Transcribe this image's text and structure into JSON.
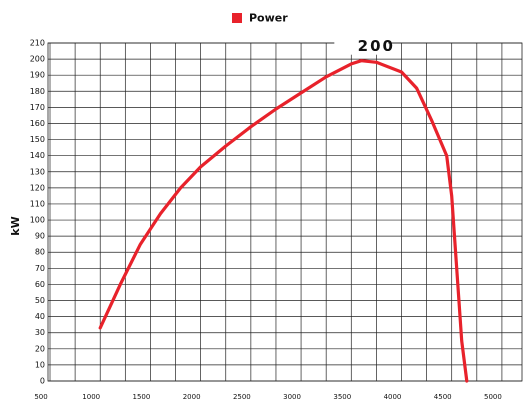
{
  "chart_data": {
    "type": "line",
    "series": [
      {
        "name": "Power",
        "color": "#e8222b",
        "x": [
          1000,
          1200,
          1400,
          1600,
          1800,
          2000,
          2250,
          2500,
          2750,
          3000,
          3250,
          3500,
          3600,
          3750,
          4000,
          4150,
          4300,
          4450,
          4500,
          4550,
          4600,
          4650
        ],
        "values": [
          33,
          60,
          85,
          104,
          120,
          133,
          146,
          158,
          169,
          179,
          189,
          197,
          199,
          198,
          192,
          182,
          162,
          140,
          115,
          70,
          25,
          0
        ]
      }
    ],
    "ylabel": "kW",
    "annotation": {
      "text": "200",
      "x": 3600,
      "y": 199
    },
    "xlim": [
      480,
      5200
    ],
    "xticks": [
      500,
      1000,
      1500,
      2000,
      2500,
      3000,
      3500,
      4000,
      4500,
      5000
    ],
    "xgrid": [
      750,
      1250,
      1750,
      2250,
      2750,
      3250,
      3750,
      4250,
      4750
    ],
    "ylim": [
      0,
      210
    ],
    "yticks": [
      0,
      10,
      20,
      30,
      40,
      50,
      60,
      70,
      80,
      90,
      100,
      110,
      120,
      130,
      140,
      150,
      160,
      170,
      180,
      190,
      200,
      210
    ],
    "grid": true,
    "legend": "top"
  }
}
